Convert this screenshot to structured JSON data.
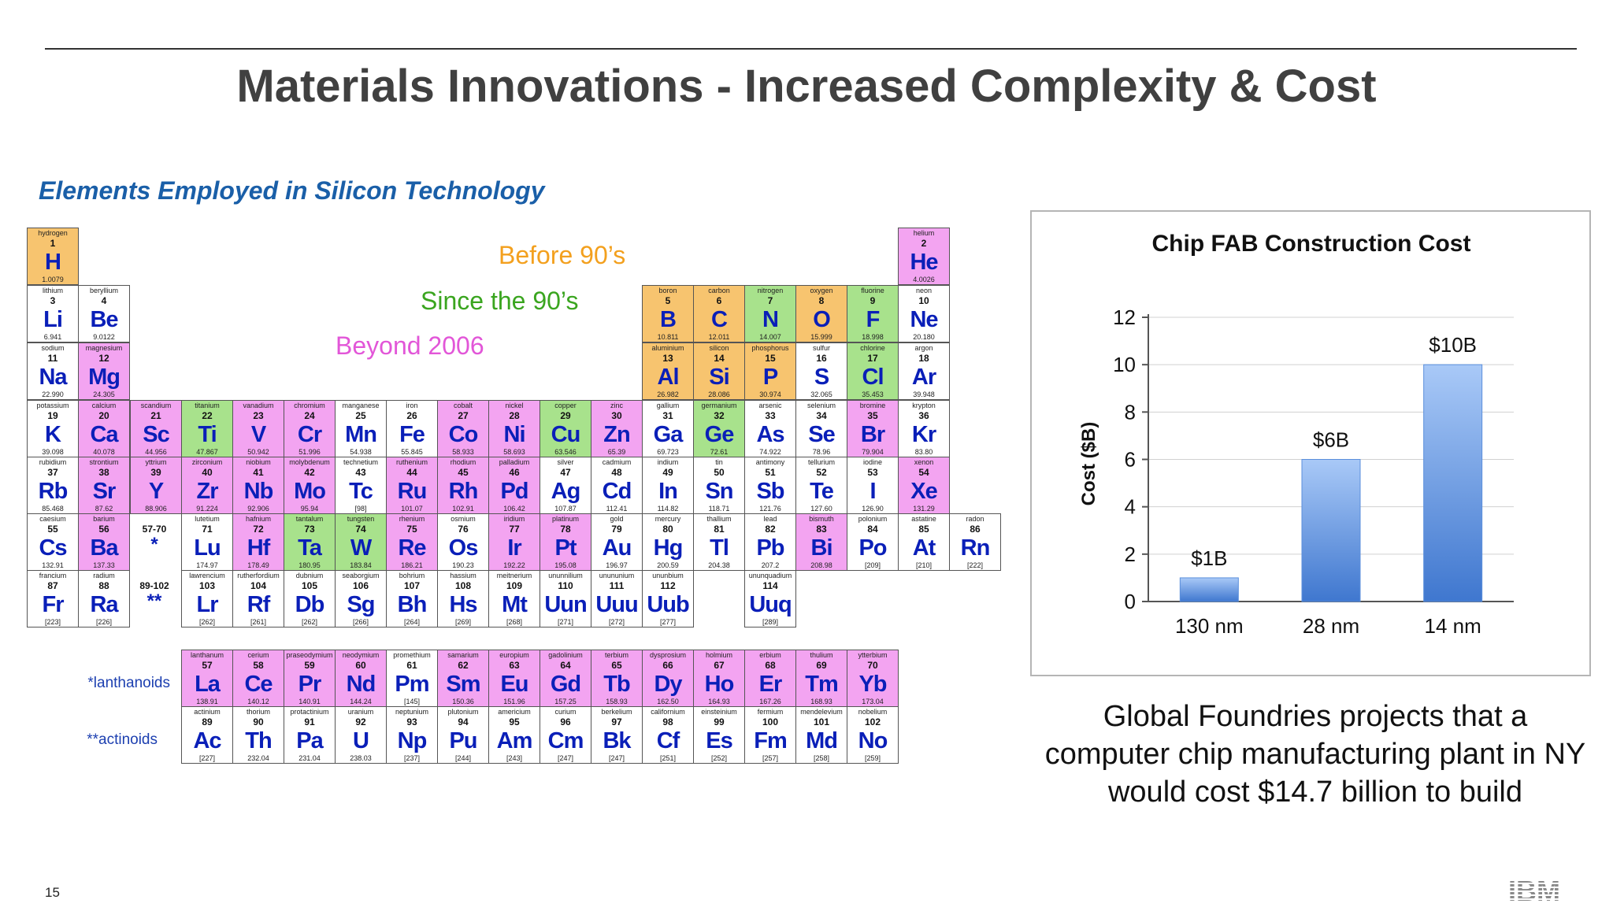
{
  "slide": {
    "title": "Materials Innovations - Increased Complexity & Cost",
    "subtitle": "Elements Employed in Silicon Technology",
    "page_number": "15",
    "logo_text": "IBM",
    "caption_lines": [
      "Global Foundries projects that a",
      "computer chip manufacturing plant in NY",
      "would cost $14.7 billion to build"
    ]
  },
  "legend": [
    {
      "label": "Before 90’s",
      "color": "#f3a01e"
    },
    {
      "label": "Since the 90’s",
      "color": "#3aa51f"
    },
    {
      "label": "Beyond 2006",
      "color": "#e256d8"
    }
  ],
  "series_labels": {
    "lanthanoids": "*lanthanoids",
    "actinoids": "**actinoids"
  },
  "placeholders": {
    "lan_star": "*",
    "act_star": "**",
    "lan_range": "57-70",
    "act_range": "89-102"
  },
  "colors": {
    "o": "#f7c46f",
    "g": "#a8e28c",
    "p": "#f3a4f1",
    "w": "#ffffff"
  },
  "elements": [
    {
      "s": "H",
      "n": "hydrogen",
      "z": "1",
      "m": "1.0079",
      "c": "o",
      "r": 1,
      "g": 1
    },
    {
      "s": "He",
      "n": "helium",
      "z": "2",
      "m": "4.0026",
      "c": "p",
      "r": 1,
      "g": 18
    },
    {
      "s": "Li",
      "n": "lithium",
      "z": "3",
      "m": "6.941",
      "c": "w",
      "r": 2,
      "g": 1
    },
    {
      "s": "Be",
      "n": "beryllium",
      "z": "4",
      "m": "9.0122",
      "c": "w",
      "r": 2,
      "g": 2
    },
    {
      "s": "B",
      "n": "boron",
      "z": "5",
      "m": "10.811",
      "c": "o",
      "r": 2,
      "g": 13
    },
    {
      "s": "C",
      "n": "carbon",
      "z": "6",
      "m": "12.011",
      "c": "o",
      "r": 2,
      "g": 14
    },
    {
      "s": "N",
      "n": "nitrogen",
      "z": "7",
      "m": "14.007",
      "c": "g",
      "r": 2,
      "g": 15
    },
    {
      "s": "O",
      "n": "oxygen",
      "z": "8",
      "m": "15.999",
      "c": "o",
      "r": 2,
      "g": 16
    },
    {
      "s": "F",
      "n": "fluorine",
      "z": "9",
      "m": "18.998",
      "c": "g",
      "r": 2,
      "g": 17
    },
    {
      "s": "Ne",
      "n": "neon",
      "z": "10",
      "m": "20.180",
      "c": "w",
      "r": 2,
      "g": 18
    },
    {
      "s": "Na",
      "n": "sodium",
      "z": "11",
      "m": "22.990",
      "c": "w",
      "r": 3,
      "g": 1
    },
    {
      "s": "Mg",
      "n": "magnesium",
      "z": "12",
      "m": "24.305",
      "c": "p",
      "r": 3,
      "g": 2
    },
    {
      "s": "Al",
      "n": "aluminium",
      "z": "13",
      "m": "26.982",
      "c": "o",
      "r": 3,
      "g": 13
    },
    {
      "s": "Si",
      "n": "silicon",
      "z": "14",
      "m": "28.086",
      "c": "o",
      "r": 3,
      "g": 14
    },
    {
      "s": "P",
      "n": "phosphorus",
      "z": "15",
      "m": "30.974",
      "c": "o",
      "r": 3,
      "g": 15
    },
    {
      "s": "S",
      "n": "sulfur",
      "z": "16",
      "m": "32.065",
      "c": "w",
      "r": 3,
      "g": 16
    },
    {
      "s": "Cl",
      "n": "chlorine",
      "z": "17",
      "m": "35.453",
      "c": "g",
      "r": 3,
      "g": 17
    },
    {
      "s": "Ar",
      "n": "argon",
      "z": "18",
      "m": "39.948",
      "c": "w",
      "r": 3,
      "g": 18
    },
    {
      "s": "K",
      "n": "potassium",
      "z": "19",
      "m": "39.098",
      "c": "w",
      "r": 4,
      "g": 1
    },
    {
      "s": "Ca",
      "n": "calcium",
      "z": "20",
      "m": "40.078",
      "c": "p",
      "r": 4,
      "g": 2
    },
    {
      "s": "Sc",
      "n": "scandium",
      "z": "21",
      "m": "44.956",
      "c": "p",
      "r": 4,
      "g": 3
    },
    {
      "s": "Ti",
      "n": "titanium",
      "z": "22",
      "m": "47.867",
      "c": "g",
      "r": 4,
      "g": 4
    },
    {
      "s": "V",
      "n": "vanadium",
      "z": "23",
      "m": "50.942",
      "c": "p",
      "r": 4,
      "g": 5
    },
    {
      "s": "Cr",
      "n": "chromium",
      "z": "24",
      "m": "51.996",
      "c": "p",
      "r": 4,
      "g": 6
    },
    {
      "s": "Mn",
      "n": "manganese",
      "z": "25",
      "m": "54.938",
      "c": "w",
      "r": 4,
      "g": 7
    },
    {
      "s": "Fe",
      "n": "iron",
      "z": "26",
      "m": "55.845",
      "c": "w",
      "r": 4,
      "g": 8
    },
    {
      "s": "Co",
      "n": "cobalt",
      "z": "27",
      "m": "58.933",
      "c": "p",
      "r": 4,
      "g": 9
    },
    {
      "s": "Ni",
      "n": "nickel",
      "z": "28",
      "m": "58.693",
      "c": "p",
      "r": 4,
      "g": 10
    },
    {
      "s": "Cu",
      "n": "copper",
      "z": "29",
      "m": "63.546",
      "c": "g",
      "r": 4,
      "g": 11
    },
    {
      "s": "Zn",
      "n": "zinc",
      "z": "30",
      "m": "65.39",
      "c": "p",
      "r": 4,
      "g": 12
    },
    {
      "s": "Ga",
      "n": "gallium",
      "z": "31",
      "m": "69.723",
      "c": "w",
      "r": 4,
      "g": 13
    },
    {
      "s": "Ge",
      "n": "germanium",
      "z": "32",
      "m": "72.61",
      "c": "g",
      "r": 4,
      "g": 14
    },
    {
      "s": "As",
      "n": "arsenic",
      "z": "33",
      "m": "74.922",
      "c": "w",
      "r": 4,
      "g": 15
    },
    {
      "s": "Se",
      "n": "selenium",
      "z": "34",
      "m": "78.96",
      "c": "w",
      "r": 4,
      "g": 16
    },
    {
      "s": "Br",
      "n": "bromine",
      "z": "35",
      "m": "79.904",
      "c": "p",
      "r": 4,
      "g": 17
    },
    {
      "s": "Kr",
      "n": "krypton",
      "z": "36",
      "m": "83.80",
      "c": "w",
      "r": 4,
      "g": 18
    },
    {
      "s": "Rb",
      "n": "rubidium",
      "z": "37",
      "m": "85.468",
      "c": "w",
      "r": 5,
      "g": 1
    },
    {
      "s": "Sr",
      "n": "strontium",
      "z": "38",
      "m": "87.62",
      "c": "p",
      "r": 5,
      "g": 2
    },
    {
      "s": "Y",
      "n": "yttrium",
      "z": "39",
      "m": "88.906",
      "c": "p",
      "r": 5,
      "g": 3
    },
    {
      "s": "Zr",
      "n": "zirconium",
      "z": "40",
      "m": "91.224",
      "c": "p",
      "r": 5,
      "g": 4
    },
    {
      "s": "Nb",
      "n": "niobium",
      "z": "41",
      "m": "92.906",
      "c": "p",
      "r": 5,
      "g": 5
    },
    {
      "s": "Mo",
      "n": "molybdenum",
      "z": "42",
      "m": "95.94",
      "c": "p",
      "r": 5,
      "g": 6
    },
    {
      "s": "Tc",
      "n": "technetium",
      "z": "43",
      "m": "[98]",
      "c": "w",
      "r": 5,
      "g": 7
    },
    {
      "s": "Ru",
      "n": "ruthenium",
      "z": "44",
      "m": "101.07",
      "c": "p",
      "r": 5,
      "g": 8
    },
    {
      "s": "Rh",
      "n": "rhodium",
      "z": "45",
      "m": "102.91",
      "c": "p",
      "r": 5,
      "g": 9
    },
    {
      "s": "Pd",
      "n": "palladium",
      "z": "46",
      "m": "106.42",
      "c": "p",
      "r": 5,
      "g": 10
    },
    {
      "s": "Ag",
      "n": "silver",
      "z": "47",
      "m": "107.87",
      "c": "w",
      "r": 5,
      "g": 11
    },
    {
      "s": "Cd",
      "n": "cadmium",
      "z": "48",
      "m": "112.41",
      "c": "w",
      "r": 5,
      "g": 12
    },
    {
      "s": "In",
      "n": "indium",
      "z": "49",
      "m": "114.82",
      "c": "w",
      "r": 5,
      "g": 13
    },
    {
      "s": "Sn",
      "n": "tin",
      "z": "50",
      "m": "118.71",
      "c": "w",
      "r": 5,
      "g": 14
    },
    {
      "s": "Sb",
      "n": "antimony",
      "z": "51",
      "m": "121.76",
      "c": "w",
      "r": 5,
      "g": 15
    },
    {
      "s": "Te",
      "n": "tellurium",
      "z": "52",
      "m": "127.60",
      "c": "w",
      "r": 5,
      "g": 16
    },
    {
      "s": "I",
      "n": "iodine",
      "z": "53",
      "m": "126.90",
      "c": "w",
      "r": 5,
      "g": 17
    },
    {
      "s": "Xe",
      "n": "xenon",
      "z": "54",
      "m": "131.29",
      "c": "p",
      "r": 5,
      "g": 18
    },
    {
      "s": "Cs",
      "n": "caesium",
      "z": "55",
      "m": "132.91",
      "c": "w",
      "r": 6,
      "g": 1
    },
    {
      "s": "Ba",
      "n": "barium",
      "z": "56",
      "m": "137.33",
      "c": "p",
      "r": 6,
      "g": 2
    },
    {
      "s": "Lu",
      "n": "lutetium",
      "z": "71",
      "m": "174.97",
      "c": "w",
      "r": 6,
      "g": 4
    },
    {
      "s": "Hf",
      "n": "hafnium",
      "z": "72",
      "m": "178.49",
      "c": "p",
      "r": 6,
      "g": 5
    },
    {
      "s": "Ta",
      "n": "tantalum",
      "z": "73",
      "m": "180.95",
      "c": "g",
      "r": 6,
      "g": 6
    },
    {
      "s": "W",
      "n": "tungsten",
      "z": "74",
      "m": "183.84",
      "c": "g",
      "r": 6,
      "g": 7
    },
    {
      "s": "Re",
      "n": "rhenium",
      "z": "75",
      "m": "186.21",
      "c": "p",
      "r": 6,
      "g": 8
    },
    {
      "s": "Os",
      "n": "osmium",
      "z": "76",
      "m": "190.23",
      "c": "w",
      "r": 6,
      "g": 9
    },
    {
      "s": "Ir",
      "n": "iridium",
      "z": "77",
      "m": "192.22",
      "c": "p",
      "r": 6,
      "g": 10
    },
    {
      "s": "Pt",
      "n": "platinum",
      "z": "78",
      "m": "195.08",
      "c": "p",
      "r": 6,
      "g": 11
    },
    {
      "s": "Au",
      "n": "gold",
      "z": "79",
      "m": "196.97",
      "c": "w",
      "r": 6,
      "g": 12
    },
    {
      "s": "Hg",
      "n": "mercury",
      "z": "80",
      "m": "200.59",
      "c": "w",
      "r": 6,
      "g": 13
    },
    {
      "s": "Tl",
      "n": "thallium",
      "z": "81",
      "m": "204.38",
      "c": "w",
      "r": 6,
      "g": 14
    },
    {
      "s": "Pb",
      "n": "lead",
      "z": "82",
      "m": "207.2",
      "c": "w",
      "r": 6,
      "g": 15
    },
    {
      "s": "Bi",
      "n": "bismuth",
      "z": "83",
      "m": "208.98",
      "c": "p",
      "r": 6,
      "g": 16
    },
    {
      "s": "Po",
      "n": "polonium",
      "z": "84",
      "m": "[209]",
      "c": "w",
      "r": 6,
      "g": 17
    },
    {
      "s": "At",
      "n": "astatine",
      "z": "85",
      "m": "[210]",
      "c": "w",
      "r": 6,
      "g": 18
    },
    {
      "s": "Rn",
      "n": "radon",
      "z": "86",
      "m": "[222]",
      "c": "w",
      "r": 6,
      "g": 19
    },
    {
      "s": "Fr",
      "n": "francium",
      "z": "87",
      "m": "[223]",
      "c": "w",
      "r": 7,
      "g": 1
    },
    {
      "s": "Ra",
      "n": "radium",
      "z": "88",
      "m": "[226]",
      "c": "w",
      "r": 7,
      "g": 2
    },
    {
      "s": "Lr",
      "n": "lawrencium",
      "z": "103",
      "m": "[262]",
      "c": "w",
      "r": 7,
      "g": 4
    },
    {
      "s": "Rf",
      "n": "rutherfordium",
      "z": "104",
      "m": "[261]",
      "c": "w",
      "r": 7,
      "g": 5
    },
    {
      "s": "Db",
      "n": "dubnium",
      "z": "105",
      "m": "[262]",
      "c": "w",
      "r": 7,
      "g": 6
    },
    {
      "s": "Sg",
      "n": "seaborgium",
      "z": "106",
      "m": "[266]",
      "c": "w",
      "r": 7,
      "g": 7
    },
    {
      "s": "Bh",
      "n": "bohrium",
      "z": "107",
      "m": "[264]",
      "c": "w",
      "r": 7,
      "g": 8
    },
    {
      "s": "Hs",
      "n": "hassium",
      "z": "108",
      "m": "[269]",
      "c": "w",
      "r": 7,
      "g": 9
    },
    {
      "s": "Mt",
      "n": "meitnerium",
      "z": "109",
      "m": "[268]",
      "c": "w",
      "r": 7,
      "g": 10
    },
    {
      "s": "Uun",
      "n": "ununnilium",
      "z": "110",
      "m": "[271]",
      "c": "w",
      "r": 7,
      "g": 11
    },
    {
      "s": "Uuu",
      "n": "unununium",
      "z": "111",
      "m": "[272]",
      "c": "w",
      "r": 7,
      "g": 12
    },
    {
      "s": "Uub",
      "n": "ununbium",
      "z": "112",
      "m": "[277]",
      "c": "w",
      "r": 7,
      "g": 13
    },
    {
      "s": "Uuq",
      "n": "ununquadium",
      "z": "114",
      "m": "[289]",
      "c": "w",
      "r": 7,
      "g": 15
    },
    {
      "s": "La",
      "n": "lanthanum",
      "z": "57",
      "m": "138.91",
      "c": "p",
      "r": 8,
      "g": 4
    },
    {
      "s": "Ce",
      "n": "cerium",
      "z": "58",
      "m": "140.12",
      "c": "p",
      "r": 8,
      "g": 5
    },
    {
      "s": "Pr",
      "n": "praseodymium",
      "z": "59",
      "m": "140.91",
      "c": "p",
      "r": 8,
      "g": 6
    },
    {
      "s": "Nd",
      "n": "neodymium",
      "z": "60",
      "m": "144.24",
      "c": "p",
      "r": 8,
      "g": 7
    },
    {
      "s": "Pm",
      "n": "promethium",
      "z": "61",
      "m": "[145]",
      "c": "w",
      "r": 8,
      "g": 8
    },
    {
      "s": "Sm",
      "n": "samarium",
      "z": "62",
      "m": "150.36",
      "c": "p",
      "r": 8,
      "g": 9
    },
    {
      "s": "Eu",
      "n": "europium",
      "z": "63",
      "m": "151.96",
      "c": "p",
      "r": 8,
      "g": 10
    },
    {
      "s": "Gd",
      "n": "gadolinium",
      "z": "64",
      "m": "157.25",
      "c": "p",
      "r": 8,
      "g": 11
    },
    {
      "s": "Tb",
      "n": "terbium",
      "z": "65",
      "m": "158.93",
      "c": "p",
      "r": 8,
      "g": 12
    },
    {
      "s": "Dy",
      "n": "dysprosium",
      "z": "66",
      "m": "162.50",
      "c": "p",
      "r": 8,
      "g": 13
    },
    {
      "s": "Ho",
      "n": "holmium",
      "z": "67",
      "m": "164.93",
      "c": "p",
      "r": 8,
      "g": 14
    },
    {
      "s": "Er",
      "n": "erbium",
      "z": "68",
      "m": "167.26",
      "c": "p",
      "r": 8,
      "g": 15
    },
    {
      "s": "Tm",
      "n": "thulium",
      "z": "69",
      "m": "168.93",
      "c": "p",
      "r": 8,
      "g": 16
    },
    {
      "s": "Yb",
      "n": "ytterbium",
      "z": "70",
      "m": "173.04",
      "c": "p",
      "r": 8,
      "g": 17
    },
    {
      "s": "Ac",
      "n": "actinium",
      "z": "89",
      "m": "[227]",
      "c": "w",
      "r": 9,
      "g": 4
    },
    {
      "s": "Th",
      "n": "thorium",
      "z": "90",
      "m": "232.04",
      "c": "w",
      "r": 9,
      "g": 5
    },
    {
      "s": "Pa",
      "n": "protactinium",
      "z": "91",
      "m": "231.04",
      "c": "w",
      "r": 9,
      "g": 6
    },
    {
      "s": "U",
      "n": "uranium",
      "z": "92",
      "m": "238.03",
      "c": "w",
      "r": 9,
      "g": 7
    },
    {
      "s": "Np",
      "n": "neptunium",
      "z": "93",
      "m": "[237]",
      "c": "w",
      "r": 9,
      "g": 8
    },
    {
      "s": "Pu",
      "n": "plutonium",
      "z": "94",
      "m": "[244]",
      "c": "w",
      "r": 9,
      "g": 9
    },
    {
      "s": "Am",
      "n": "americium",
      "z": "95",
      "m": "[243]",
      "c": "w",
      "r": 9,
      "g": 10
    },
    {
      "s": "Cm",
      "n": "curium",
      "z": "96",
      "m": "[247]",
      "c": "w",
      "r": 9,
      "g": 11
    },
    {
      "s": "Bk",
      "n": "berkelium",
      "z": "97",
      "m": "[247]",
      "c": "w",
      "r": 9,
      "g": 12
    },
    {
      "s": "Cf",
      "n": "californium",
      "z": "98",
      "m": "[251]",
      "c": "w",
      "r": 9,
      "g": 13
    },
    {
      "s": "Es",
      "n": "einsteinium",
      "z": "99",
      "m": "[252]",
      "c": "w",
      "r": 9,
      "g": 14
    },
    {
      "s": "Fm",
      "n": "fermium",
      "z": "100",
      "m": "[257]",
      "c": "w",
      "r": 9,
      "g": 15
    },
    {
      "s": "Md",
      "n": "mendelevium",
      "z": "101",
      "m": "[258]",
      "c": "w",
      "r": 9,
      "g": 16
    },
    {
      "s": "No",
      "n": "nobelium",
      "z": "102",
      "m": "[259]",
      "c": "w",
      "r": 9,
      "g": 17
    }
  ],
  "chart_data": {
    "type": "bar",
    "title": "Chip FAB Construction Cost",
    "ylabel": "Cost ($B)",
    "xlabel": "",
    "categories": [
      "130 nm",
      "28 nm",
      "14 nm"
    ],
    "values": [
      1,
      6,
      10
    ],
    "data_labels": [
      "$1B",
      "$6B",
      "$10B"
    ],
    "ylim": [
      0,
      12
    ],
    "yticks": [
      "0",
      "2",
      "4",
      "6",
      "8",
      "10",
      "12"
    ],
    "grid": true,
    "bar_color": "#5b8fdc"
  }
}
